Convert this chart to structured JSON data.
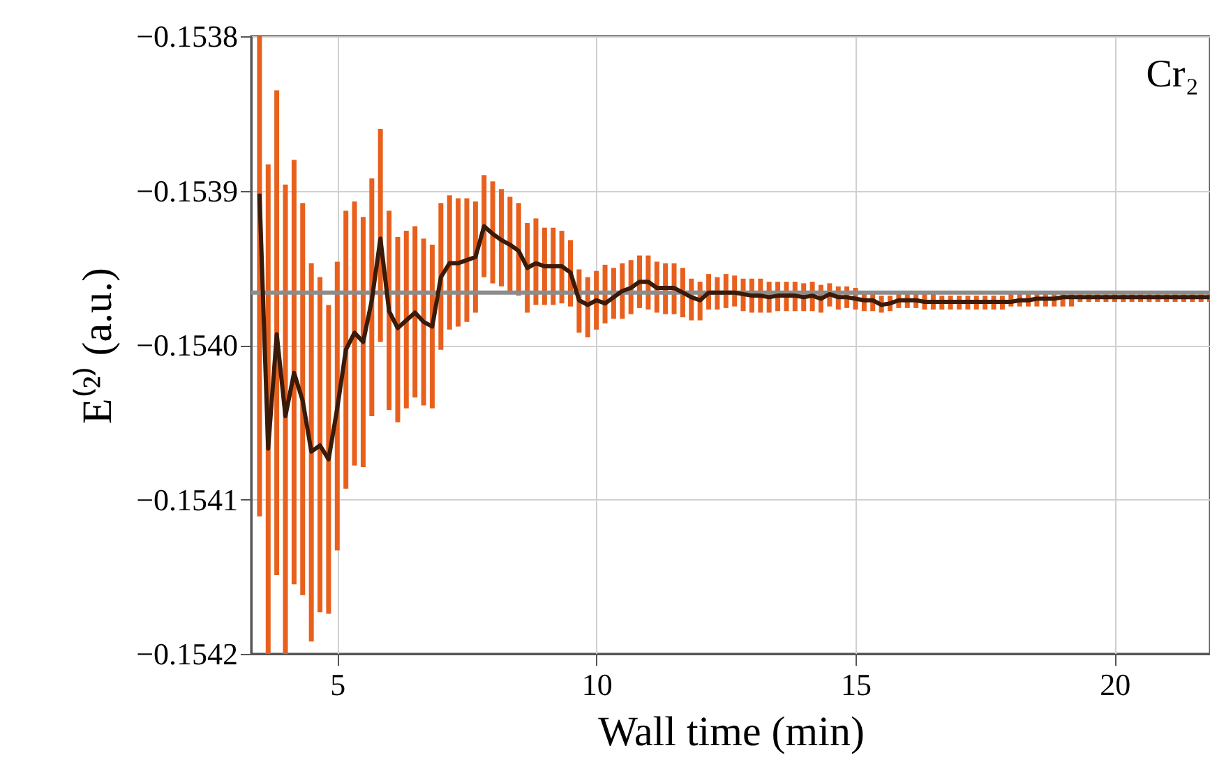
{
  "chart_data": {
    "type": "line",
    "xlabel": "Wall time (min)",
    "ylabel": "E⁽²⁾ (a.u.)",
    "annotations": [
      "Cr₂"
    ],
    "xlim": [
      3.34,
      21.84
    ],
    "xticks": [
      5,
      10,
      15,
      20
    ],
    "ylim": [
      -0.1542,
      -0.1538
    ],
    "yticks": [
      -0.1538,
      -0.1539,
      {
        "value": -0.154,
        "label": "−0.1540"
      },
      -0.1541,
      -0.1542
    ],
    "grid": true,
    "marker": "none",
    "line_style": "solid",
    "ref_lines": [
      {
        "axis": "y",
        "value": -0.153966,
        "color": "#8c8c8c"
      }
    ],
    "x": [
      3.5,
      3.667,
      3.833,
      4,
      4.167,
      4.333,
      4.5,
      4.667,
      4.833,
      5,
      5.167,
      5.333,
      5.5,
      5.667,
      5.833,
      6,
      6.167,
      6.333,
      6.5,
      6.667,
      6.833,
      7,
      7.167,
      7.333,
      7.5,
      7.667,
      7.833,
      8,
      8.167,
      8.333,
      8.5,
      8.667,
      8.833,
      9,
      9.167,
      9.333,
      9.5,
      9.667,
      9.833,
      10,
      10.167,
      10.333,
      10.5,
      10.667,
      10.833,
      11,
      11.167,
      11.333,
      11.5,
      11.667,
      11.833,
      12,
      12.167,
      12.333,
      12.5,
      12.667,
      12.833,
      13,
      13.167,
      13.333,
      13.5,
      13.667,
      13.833,
      14,
      14.167,
      14.333,
      14.5,
      14.667,
      14.833,
      15,
      15.167,
      15.333,
      15.5,
      15.667,
      15.833,
      16,
      16.167,
      16.333,
      16.5,
      16.667,
      16.833,
      17,
      17.167,
      17.333,
      17.5,
      17.667,
      17.833,
      18,
      18.167,
      18.333,
      18.5,
      18.667,
      18.833,
      19,
      19.167,
      19.333,
      19.5,
      19.667,
      19.833,
      20,
      20.167,
      20.333,
      20.5,
      20.667,
      20.833,
      21,
      21.167,
      21.333,
      21.5,
      21.667,
      21.833
    ],
    "series": [
      {
        "color": "#3a1a08",
        "values": [
          -0.153902,
          -0.154067,
          -0.153993,
          -0.154046,
          -0.154018,
          -0.154036,
          -0.154069,
          -0.154065,
          -0.154074,
          -0.154041,
          -0.154003,
          -0.153992,
          -0.153998,
          -0.153971,
          -0.153931,
          -0.153978,
          -0.153989,
          -0.153984,
          -0.153979,
          -0.153985,
          -0.153988,
          -0.153956,
          -0.153947,
          -0.153947,
          -0.153945,
          -0.153943,
          -0.153923,
          -0.153928,
          -0.153932,
          -0.153935,
          -0.153939,
          -0.15395,
          -0.153947,
          -0.153949,
          -0.153949,
          -0.153949,
          -0.153953,
          -0.153971,
          -0.153974,
          -0.153971,
          -0.153973,
          -0.153969,
          -0.153965,
          -0.153963,
          -0.153959,
          -0.153959,
          -0.153963,
          -0.153963,
          -0.153963,
          -0.153966,
          -0.153969,
          -0.153971,
          -0.153966,
          -0.153966,
          -0.153966,
          -0.153966,
          -0.153967,
          -0.153968,
          -0.153968,
          -0.153969,
          -0.153968,
          -0.153968,
          -0.153968,
          -0.153969,
          -0.153968,
          -0.15397,
          -0.153967,
          -0.153969,
          -0.153969,
          -0.15397,
          -0.153971,
          -0.153971,
          -0.153974,
          -0.153973,
          -0.153971,
          -0.153971,
          -0.153971,
          -0.153972,
          -0.153972,
          -0.153972,
          -0.153972,
          -0.153972,
          -0.153972,
          -0.153972,
          -0.153972,
          -0.153972,
          -0.153972,
          -0.153972,
          -0.153971,
          -0.153971,
          -0.15397,
          -0.15397,
          -0.15397,
          -0.153969,
          -0.153969,
          -0.153969,
          -0.153969,
          -0.153969,
          -0.153969,
          -0.153969,
          -0.153969,
          -0.153969,
          -0.153969,
          -0.153969,
          -0.153969,
          -0.153969,
          -0.153969,
          -0.153969,
          -0.153969,
          -0.153969,
          -0.153969
        ],
        "errors": [
          [
            -0.154111,
            -0.1538
          ],
          [
            -0.1542,
            -0.153883
          ],
          [
            -0.154149,
            -0.153835
          ],
          [
            -0.1542,
            -0.153896
          ],
          [
            -0.154155,
            -0.15388
          ],
          [
            -0.154162,
            -0.153908
          ],
          [
            -0.154192,
            -0.153947
          ],
          [
            -0.154173,
            -0.153956
          ],
          [
            -0.154174,
            -0.153974
          ],
          [
            -0.154133,
            -0.153946
          ],
          [
            -0.154093,
            -0.153913
          ],
          [
            -0.154078,
            -0.153907
          ],
          [
            -0.154079,
            -0.153917
          ],
          [
            -0.154046,
            -0.153892
          ],
          [
            -0.153998,
            -0.15386
          ],
          [
            -0.154042,
            -0.153913
          ],
          [
            -0.15405,
            -0.15393
          ],
          [
            -0.154041,
            -0.153926
          ],
          [
            -0.154034,
            -0.153923
          ],
          [
            -0.154039,
            -0.153931
          ],
          [
            -0.154041,
            -0.153935
          ],
          [
            -0.154003,
            -0.153908
          ],
          [
            -0.15399,
            -0.153903
          ],
          [
            -0.153988,
            -0.153905
          ],
          [
            -0.153985,
            -0.153905
          ],
          [
            -0.153979,
            -0.153907
          ],
          [
            -0.153956,
            -0.15389
          ],
          [
            -0.15396,
            -0.153894
          ],
          [
            -0.153962,
            -0.153899
          ],
          [
            -0.153966,
            -0.153904
          ],
          [
            -0.153968,
            -0.153908
          ],
          [
            -0.153979,
            -0.153921
          ],
          [
            -0.153974,
            -0.153918
          ],
          [
            -0.153974,
            -0.153924
          ],
          [
            -0.153974,
            -0.153924
          ],
          [
            -0.153973,
            -0.153926
          ],
          [
            -0.153975,
            -0.153932
          ],
          [
            -0.153992,
            -0.153951
          ],
          [
            -0.153995,
            -0.153956
          ],
          [
            -0.15399,
            -0.153952
          ],
          [
            -0.153986,
            -0.153948
          ],
          [
            -0.153983,
            -0.15395
          ],
          [
            -0.153983,
            -0.153947
          ],
          [
            -0.15398,
            -0.153945
          ],
          [
            -0.153976,
            -0.153942
          ],
          [
            -0.153977,
            -0.153942
          ],
          [
            -0.153979,
            -0.153946
          ],
          [
            -0.15398,
            -0.153947
          ],
          [
            -0.15398,
            -0.153947
          ],
          [
            -0.153982,
            -0.15395
          ],
          [
            -0.153984,
            -0.153957
          ],
          [
            -0.153984,
            -0.153959
          ],
          [
            -0.153977,
            -0.153954
          ],
          [
            -0.153977,
            -0.153956
          ],
          [
            -0.153976,
            -0.153954
          ],
          [
            -0.153975,
            -0.153955
          ],
          [
            -0.153978,
            -0.153957
          ],
          [
            -0.153979,
            -0.153957
          ],
          [
            -0.153979,
            -0.153957
          ],
          [
            -0.153979,
            -0.153959
          ],
          [
            -0.153978,
            -0.153959
          ],
          [
            -0.153978,
            -0.153959
          ],
          [
            -0.153978,
            -0.153959
          ],
          [
            -0.153978,
            -0.15396
          ],
          [
            -0.153978,
            -0.153959
          ],
          [
            -0.153979,
            -0.153961
          ],
          [
            -0.153975,
            -0.15396
          ],
          [
            -0.153977,
            -0.153962
          ],
          [
            -0.153976,
            -0.153962
          ],
          [
            -0.153977,
            -0.153963
          ],
          [
            -0.153978,
            -0.153965
          ],
          [
            -0.153978,
            -0.153965
          ],
          [
            -0.153979,
            -0.153968
          ],
          [
            -0.153978,
            -0.153968
          ],
          [
            -0.153976,
            -0.153966
          ],
          [
            -0.153976,
            -0.153966
          ],
          [
            -0.153976,
            -0.153966
          ],
          [
            -0.153977,
            -0.153967
          ],
          [
            -0.153977,
            -0.153967
          ],
          [
            -0.153977,
            -0.153968
          ],
          [
            -0.153977,
            -0.153968
          ],
          [
            -0.153977,
            -0.153968
          ],
          [
            -0.153977,
            -0.153968
          ],
          [
            -0.153977,
            -0.153968
          ],
          [
            -0.153977,
            -0.153968
          ],
          [
            -0.153977,
            -0.153968
          ],
          [
            -0.153977,
            -0.153968
          ],
          [
            -0.153975,
            -0.153967
          ],
          [
            -0.153975,
            -0.153967
          ],
          [
            -0.153975,
            -0.153967
          ],
          [
            -0.153975,
            -0.153967
          ],
          [
            -0.153975,
            -0.153967
          ],
          [
            -0.153975,
            -0.153967
          ],
          [
            -0.153975,
            -0.153967
          ],
          [
            -0.153975,
            -0.153967
          ],
          [
            -0.153972,
            -0.153966
          ],
          [
            -0.153972,
            -0.153966
          ],
          [
            -0.153972,
            -0.153966
          ],
          [
            -0.153972,
            -0.153966
          ],
          [
            -0.153972,
            -0.153966
          ],
          [
            -0.153972,
            -0.153966
          ],
          [
            -0.153972,
            -0.153966
          ],
          [
            -0.153972,
            -0.153966
          ],
          [
            -0.153972,
            -0.153966
          ],
          [
            -0.153972,
            -0.153966
          ],
          [
            -0.153972,
            -0.153966
          ],
          [
            -0.153972,
            -0.153966
          ],
          [
            -0.153972,
            -0.153966
          ],
          [
            -0.153972,
            -0.153966
          ],
          [
            -0.153972,
            -0.153966
          ],
          [
            -0.153972,
            -0.153966
          ]
        ]
      }
    ]
  }
}
